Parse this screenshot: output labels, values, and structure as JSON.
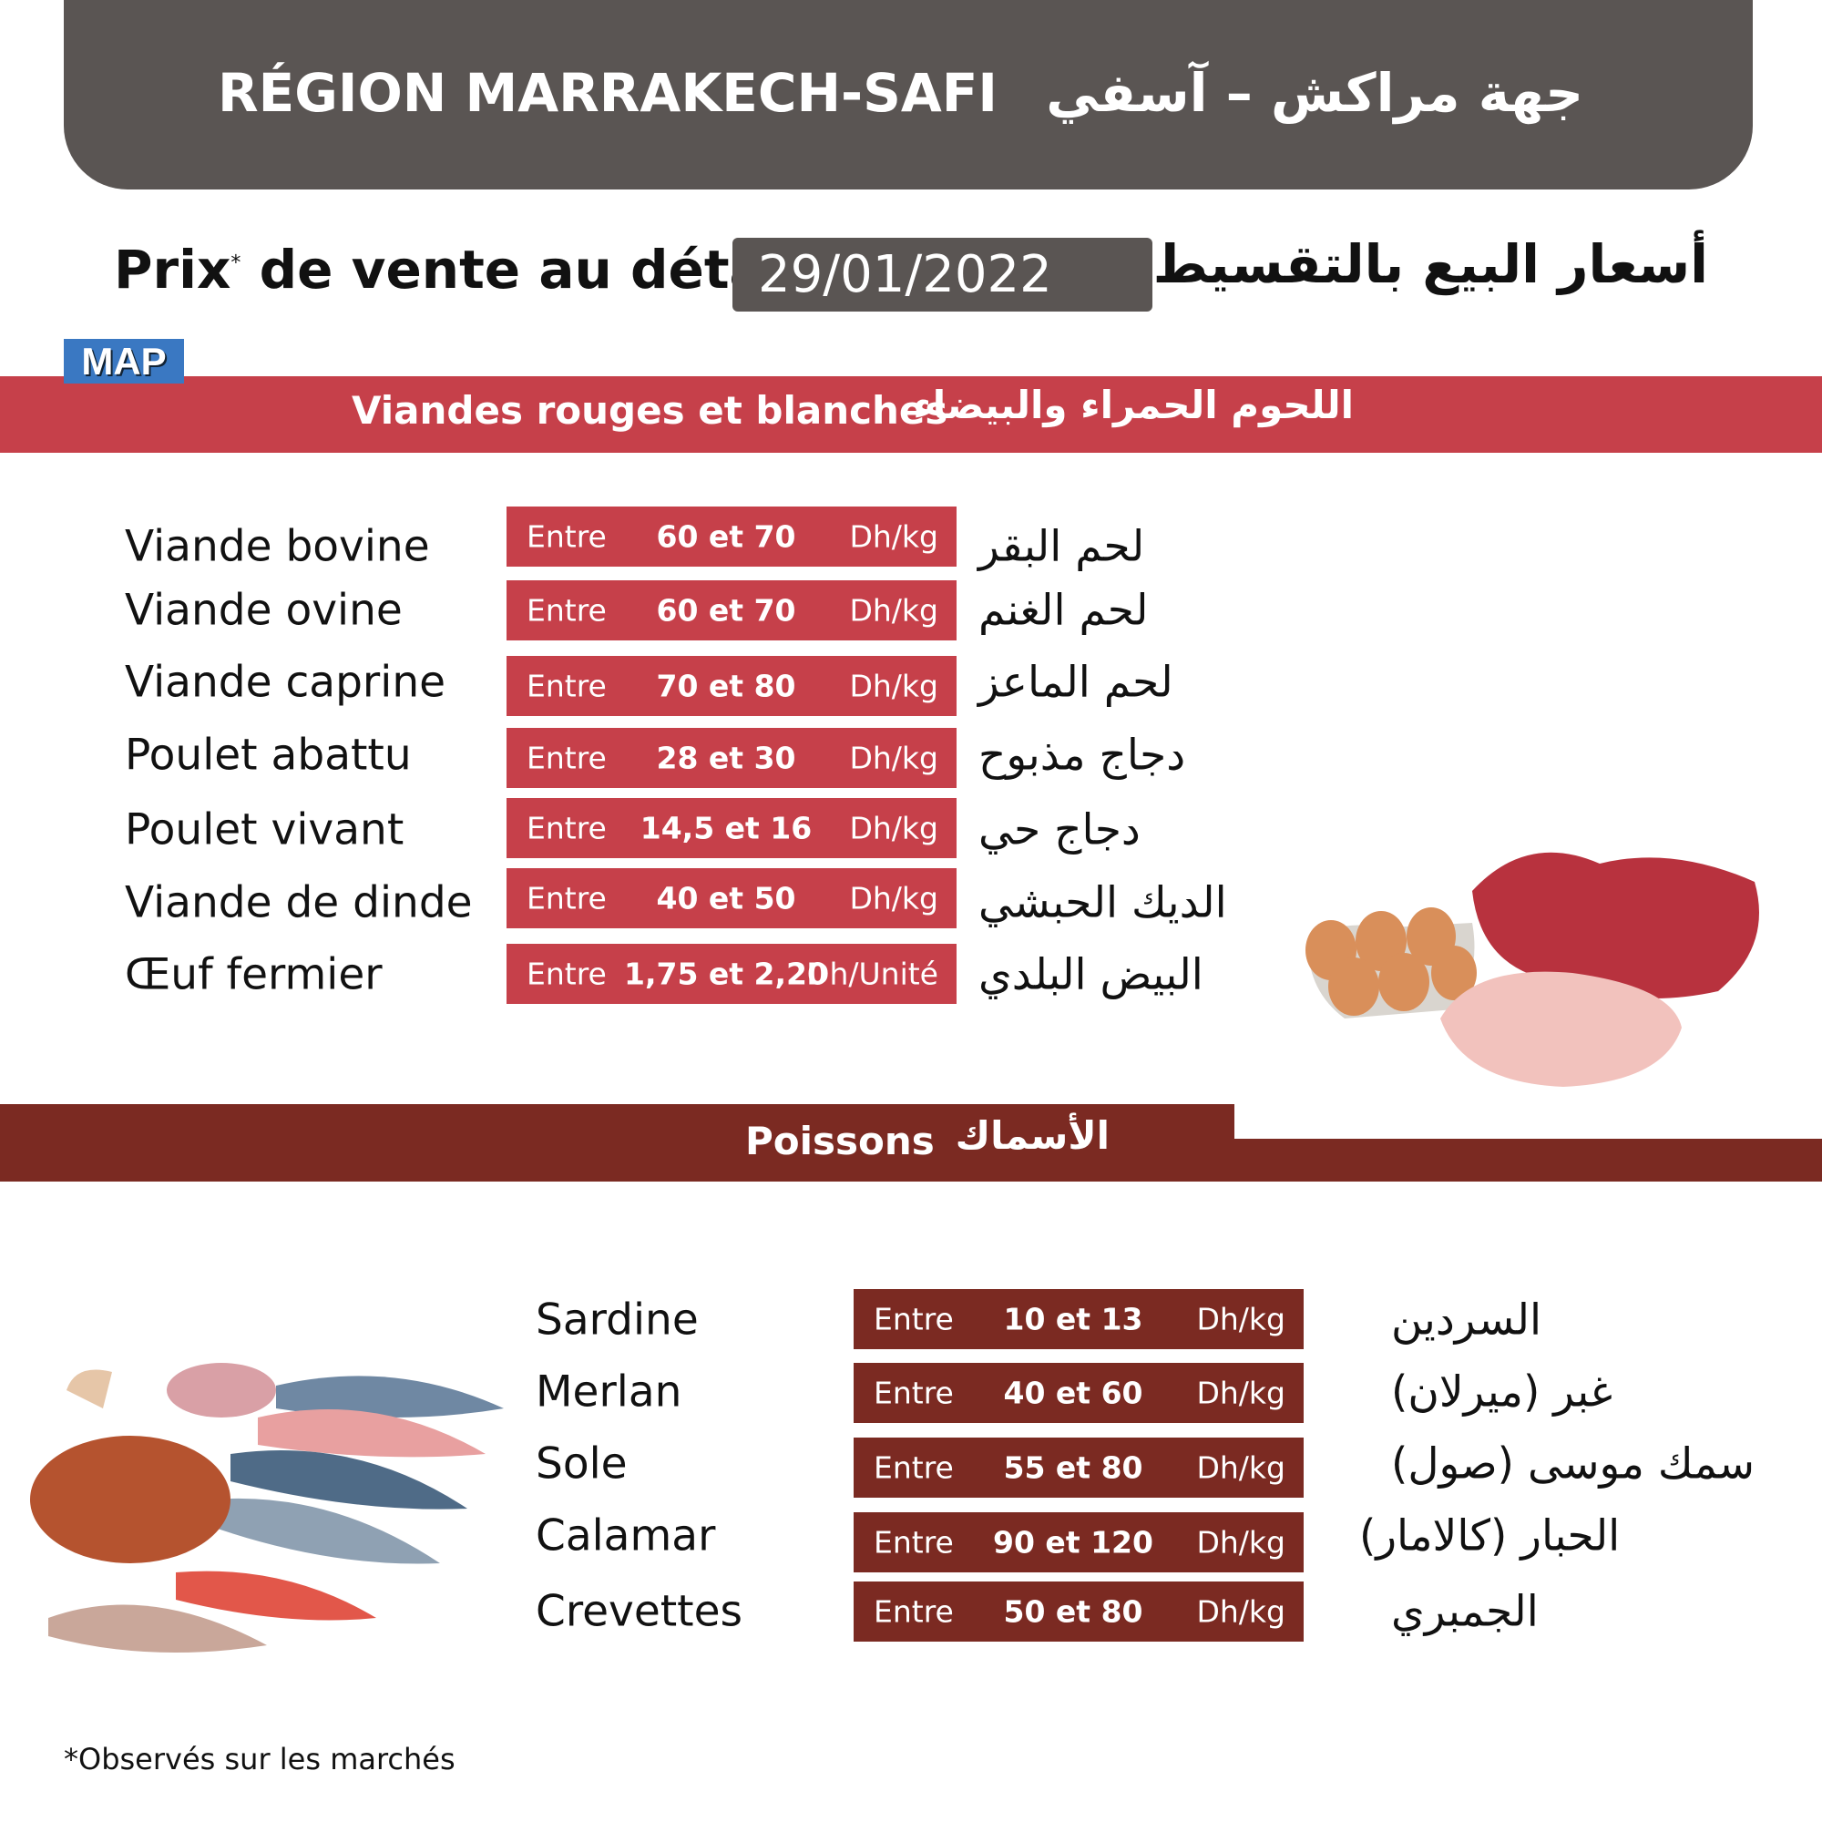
{
  "header": {
    "title_fr": "RÉGION MARRAKECH-SAFI",
    "title_ar": "جهة مراكش – آسفي"
  },
  "title": {
    "fr": "Prix de vente au détail",
    "asterisk": "*",
    "date": "29/01/2022",
    "ar": "أسعار البيع بالتقسيط"
  },
  "logo": {
    "text": "MAP",
    "color": "#3a78c2"
  },
  "colors": {
    "header": "#5a5553",
    "meat": "#c6404a",
    "fish": "#7b2a22"
  },
  "meat": {
    "title_fr": "Viandes rouges et blanches",
    "title_ar": "اللحوم الحمراء والبيضاء",
    "items": [
      {
        "fr": "Viande bovine",
        "entre": "Entre",
        "range": "60 et 70",
        "unit": "Dh/kg",
        "ar": "لحم البقر"
      },
      {
        "fr": "Viande ovine",
        "entre": "Entre",
        "range": "60 et 70",
        "unit": "Dh/kg",
        "ar": "لحم الغنم"
      },
      {
        "fr": "Viande caprine",
        "entre": "Entre",
        "range": "70 et 80",
        "unit": "Dh/kg",
        "ar": "لحم الماعز"
      },
      {
        "fr": "Poulet abattu",
        "entre": "Entre",
        "range": "28 et  30",
        "unit": "Dh/kg",
        "ar": "دجاج مذبوح"
      },
      {
        "fr": "Poulet vivant",
        "entre": "Entre",
        "range": "14,5 et 16",
        "unit": "Dh/kg",
        "ar": "دجاج حي"
      },
      {
        "fr": "Viande de dinde",
        "entre": "Entre",
        "range": "40 et 50",
        "unit": "Dh/kg",
        "ar": "الديك الحبشي"
      },
      {
        "fr": "Œuf fermier",
        "entre": "Entre",
        "range": "1,75 et 2,20",
        "unit": "Dh/Unité",
        "ar": "البيض البلدي"
      }
    ]
  },
  "fish": {
    "title_fr": "Poissons",
    "title_ar": "الأسماك",
    "items": [
      {
        "fr": "Sardine",
        "entre": "Entre",
        "range": "10 et 13",
        "unit": "Dh/kg",
        "ar": "السردين"
      },
      {
        "fr": "Merlan",
        "entre": "Entre",
        "range": "40 et 60",
        "unit": "Dh/kg",
        "ar": "غبر (ميرلان)"
      },
      {
        "fr": "Sole",
        "entre": "Entre",
        "range": "55 et 80",
        "unit": "Dh/kg",
        "ar": "سمك موسى (صول)"
      },
      {
        "fr": "Calamar",
        "entre": "Entre",
        "range": "90 et 120",
        "unit": "Dh/kg",
        "ar": "الحبار (كالامار)"
      },
      {
        "fr": "Crevettes",
        "entre": "Entre",
        "range": "50 et 80",
        "unit": "Dh/kg",
        "ar": "الجمبري"
      }
    ]
  },
  "footnote": "*Observés sur les marchés"
}
